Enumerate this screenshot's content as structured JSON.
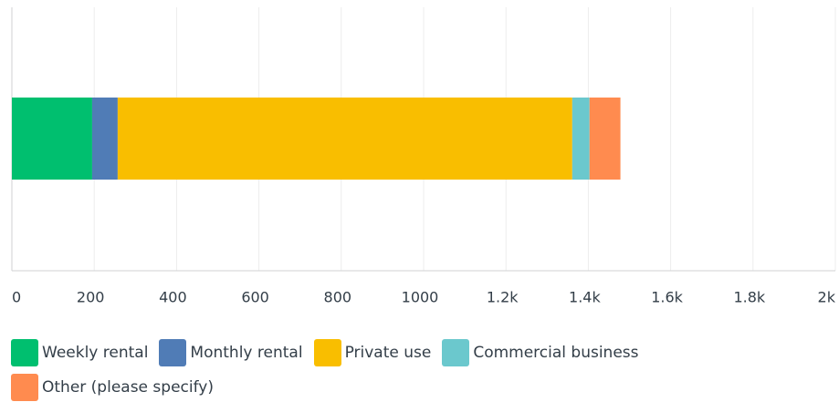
{
  "chart_data": {
    "type": "stacked-barh",
    "series": [
      {
        "name": "Weekly rental",
        "color": "#00bf6f",
        "values": [
          195
        ]
      },
      {
        "name": "Monthly rental",
        "color": "#507cb6",
        "values": [
          62
        ]
      },
      {
        "name": "Private use",
        "color": "#f9be00",
        "values": [
          1104
        ]
      },
      {
        "name": "Commercial business",
        "color": "#6bc8cd",
        "values": [
          42
        ]
      },
      {
        "name": "Other (please specify)",
        "color": "#ff8b4f",
        "values": [
          75
        ]
      }
    ],
    "xlim": [
      0,
      2000
    ],
    "xticks": [
      0,
      200,
      400,
      600,
      800,
      1000,
      {
        "value": 1200,
        "label": "1.2k"
      },
      {
        "value": 1400,
        "label": "1.4k"
      },
      {
        "value": 1600,
        "label": "1.6k"
      },
      {
        "value": 1800,
        "label": "1.8k"
      },
      {
        "value": 2000,
        "label": "2k"
      }
    ],
    "grid": true
  }
}
